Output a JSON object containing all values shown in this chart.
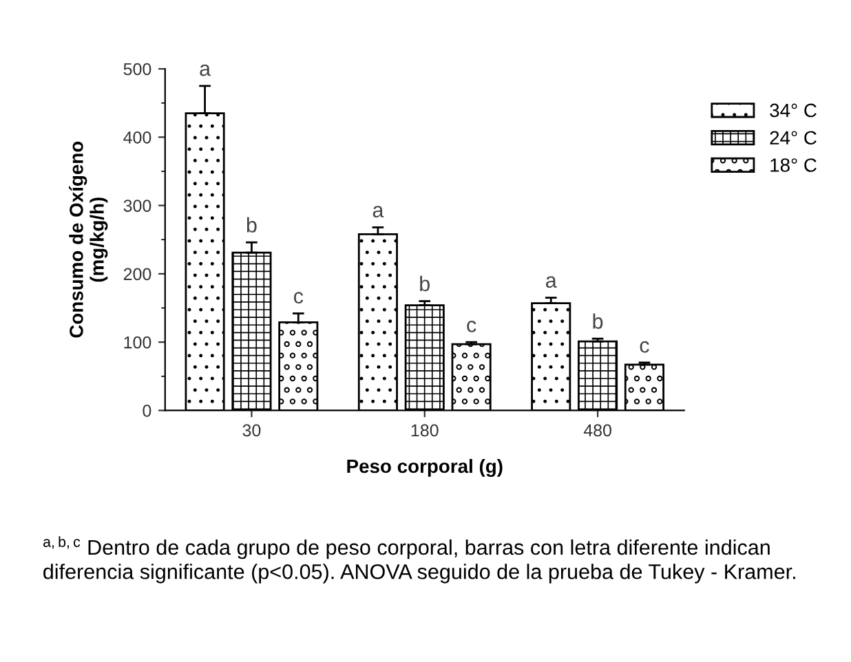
{
  "chart_data": {
    "type": "bar",
    "xlabel": "Peso corporal (g)",
    "ylabel": "Consumo de Oxígeno\n(mg/kg/h)",
    "categories": [
      "30",
      "180",
      "480"
    ],
    "series": [
      {
        "name": "34° C",
        "values": [
          435,
          258,
          157
        ],
        "errors": [
          40,
          10,
          8
        ],
        "value_labels": [
          "a",
          "a",
          "a"
        ]
      },
      {
        "name": "24° C",
        "values": [
          231,
          154,
          101
        ],
        "errors": [
          15,
          6,
          4
        ],
        "value_labels": [
          "b",
          "b",
          "b"
        ]
      },
      {
        "name": "18° C",
        "values": [
          129,
          97,
          67
        ],
        "errors": [
          13,
          3,
          3
        ],
        "value_labels": [
          "c",
          "c",
          "c"
        ]
      }
    ],
    "ylim": [
      0,
      500
    ],
    "yticks": [
      0,
      100,
      200,
      300,
      400,
      500
    ],
    "grid": false,
    "legend": "right",
    "annotations": [
      "$^{a,b,c}$ Dentro de cada grupo de peso corporal, barras con letra diferente indican diferencia significante (p<0.05). ANOVA seguido de la prueba de Tukey - Kramer."
    ]
  }
}
